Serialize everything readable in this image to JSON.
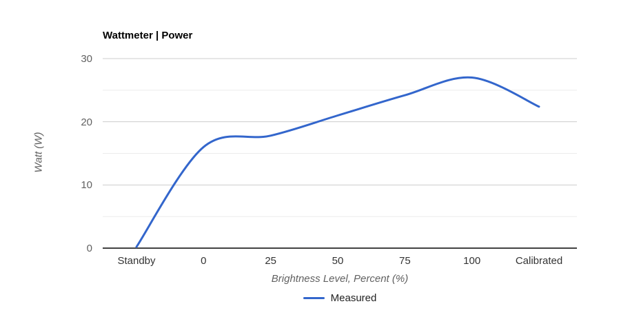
{
  "page": {
    "background": "#ffffff"
  },
  "chart_data": {
    "type": "line",
    "title": "Wattmeter | Power",
    "xlabel": "Brightness Level, Percent (%)",
    "ylabel": "Watt (W)",
    "categories": [
      "Standby",
      "0",
      "25",
      "50",
      "75",
      "100",
      "Calibrated"
    ],
    "series": [
      {
        "name": "Measured",
        "color": "#3366cc",
        "values": [
          0.2,
          16,
          17.8,
          21,
          24.2,
          27,
          22.4
        ]
      }
    ],
    "ylim": [
      0,
      30
    ],
    "yticks": [
      0,
      10,
      20,
      30
    ],
    "yticks_minor": [
      5,
      15,
      25
    ],
    "grid": true,
    "curve": "smooth",
    "legend_position": "bottom"
  },
  "colors": {
    "grid_major": "#cccccc",
    "grid_minor": "#ebebeb",
    "baseline": "#424242",
    "title_text": "#000000",
    "y_tick_text": "#616161",
    "x_tick_text": "#333333",
    "axis_title_text": "#616161",
    "legend_text": "#222222"
  }
}
